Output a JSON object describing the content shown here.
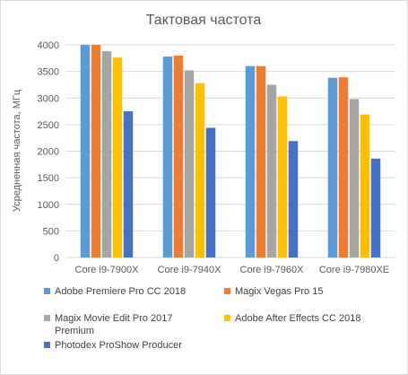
{
  "chart_data": {
    "type": "bar",
    "title": "Тактовая частота",
    "ylabel": "Усредненная частота, МГц",
    "xlabel": "",
    "ylim": [
      0,
      4000
    ],
    "yticks": [
      0,
      500,
      1000,
      1500,
      2000,
      2500,
      3000,
      3500,
      4000
    ],
    "categories": [
      "Core i9-7900X",
      "Core i9-7940X",
      "Core i9-7960X",
      "Core i9-7980XE"
    ],
    "grid": true,
    "legend_position": "bottom",
    "series": [
      {
        "name": "Adobe Premiere Pro CC 2018",
        "color": "#5b9bd5",
        "values": [
          4000,
          3780,
          3600,
          3380
        ]
      },
      {
        "name": "Magix Vegas Pro 15",
        "color": "#ed7d31",
        "values": [
          4000,
          3800,
          3600,
          3390
        ]
      },
      {
        "name": "Magix Movie Edit Pro 2017  Premium",
        "color": "#a5a5a5",
        "values": [
          3880,
          3520,
          3250,
          2980
        ]
      },
      {
        "name": "Adobe After Effects CC 2018",
        "color": "#ffc000",
        "values": [
          3760,
          3280,
          3030,
          2690
        ]
      },
      {
        "name": "Photodex ProShow Producer",
        "color": "#4472c4",
        "values": [
          2750,
          2440,
          2190,
          1860
        ]
      }
    ]
  }
}
